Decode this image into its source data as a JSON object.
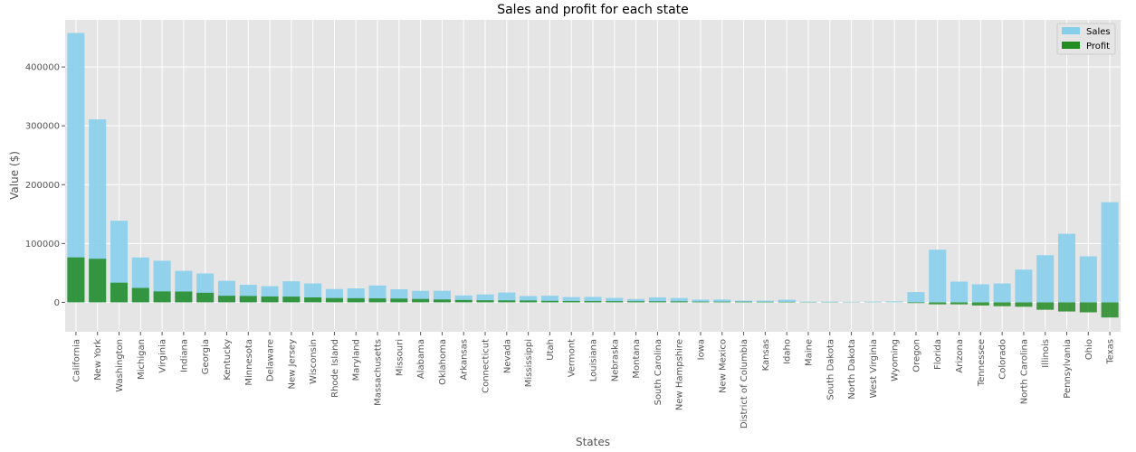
{
  "chart_data": {
    "type": "bar",
    "title": "Sales and profit for each state",
    "xlabel": "States",
    "ylabel": "Value ($)",
    "ylim": [
      -50000,
      480000
    ],
    "yticks": [
      0,
      100000,
      200000,
      300000,
      400000
    ],
    "ytick_labels": [
      "0",
      "100000",
      "200000",
      "300000",
      "400000"
    ],
    "grid": true,
    "legend_position": "top-right",
    "colors": {
      "Sales": "#87ceeb",
      "Profit": "#228b22",
      "background": "#e5e5e5"
    },
    "categories": [
      "California",
      "New York",
      "Washington",
      "Michigan",
      "Virginia",
      "Indiana",
      "Georgia",
      "Kentucky",
      "Minnesota",
      "Delaware",
      "New Jersey",
      "Wisconsin",
      "Rhode Island",
      "Maryland",
      "Massachusetts",
      "Missouri",
      "Alabama",
      "Oklahoma",
      "Arkansas",
      "Connecticut",
      "Nevada",
      "Mississippi",
      "Utah",
      "Vermont",
      "Louisiana",
      "Nebraska",
      "Montana",
      "South Carolina",
      "New Hampshire",
      "Iowa",
      "New Mexico",
      "District of Columbia",
      "Kansas",
      "Idaho",
      "Maine",
      "South Dakota",
      "North Dakota",
      "West Virginia",
      "Wyoming",
      "Oregon",
      "Florida",
      "Arizona",
      "Tennessee",
      "Colorado",
      "North Carolina",
      "Illinois",
      "Pennsylvania",
      "Ohio",
      "Texas"
    ],
    "series": [
      {
        "name": "Sales",
        "values": [
          457688,
          310876,
          138641,
          76270,
          70637,
          53555,
          49096,
          36592,
          29863,
          27451,
          35764,
          32115,
          22628,
          23706,
          28634,
          22205,
          19511,
          19683,
          11678,
          13384,
          16729,
          10771,
          11220,
          8929,
          9217,
          7465,
          5589,
          8482,
          7293,
          4580,
          4784,
          2865,
          2914,
          4382,
          1271,
          1316,
          920,
          1210,
          1603,
          17431,
          89474,
          35282,
          30662,
          32108,
          55603,
          80166,
          116512,
          78258,
          170188
        ]
      },
      {
        "name": "Profit",
        "values": [
          76381,
          74039,
          33403,
          24463,
          18598,
          18383,
          16250,
          11200,
          10823,
          9977,
          9773,
          8402,
          7286,
          7031,
          6786,
          6436,
          5787,
          4854,
          4009,
          3511,
          3317,
          3172,
          2547,
          2245,
          2196,
          2037,
          1833,
          1769,
          1707,
          1184,
          1158,
          1060,
          836,
          827,
          455,
          395,
          230,
          186,
          101,
          -1195,
          -3399,
          -3428,
          -5342,
          -6528,
          -7490,
          -12608,
          -15560,
          -16971,
          -25729
        ]
      }
    ]
  }
}
